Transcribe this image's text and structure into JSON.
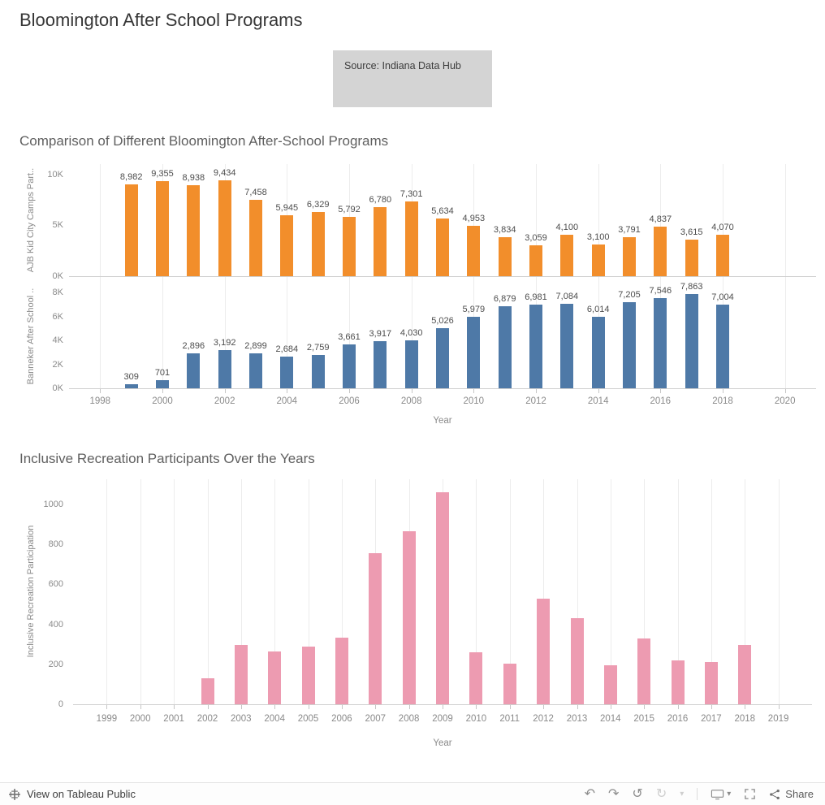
{
  "page": {
    "title": "Bloomington After School Programs",
    "source_note": "Source: Indiana Data Hub"
  },
  "toolbar": {
    "view_label": "View on Tableau Public",
    "share_label": "Share",
    "icons": [
      "tableau-logo-icon",
      "undo-icon",
      "redo-icon",
      "replay-icon",
      "refresh-icon",
      "caret-down-icon",
      "device-layout-icon",
      "fullscreen-icon",
      "share-icon"
    ]
  },
  "chart_data": [
    {
      "type": "bar",
      "title": "Comparison of Different Bloomington After-School Programs",
      "xlabel": "Year",
      "x_range": [
        1997,
        2021
      ],
      "x_ticks": [
        1998,
        2000,
        2002,
        2004,
        2006,
        2008,
        2010,
        2012,
        2014,
        2016,
        2018,
        2020
      ],
      "categories": [
        1999,
        2000,
        2001,
        2002,
        2003,
        2004,
        2005,
        2006,
        2007,
        2008,
        2009,
        2010,
        2011,
        2012,
        2013,
        2014,
        2015,
        2016,
        2017,
        2018
      ],
      "grid": "vertical",
      "legend": "none",
      "panels": [
        {
          "name": "AJB Kid City Camps Participation",
          "axis_label": "AJB Kid City Camps Part..",
          "color": "#f28e2b",
          "ylim": [
            0,
            11000
          ],
          "y_ticks": [
            {
              "v": 0,
              "label": "0K"
            },
            {
              "v": 5000,
              "label": "5K"
            },
            {
              "v": 10000,
              "label": "10K"
            }
          ],
          "values": [
            8982,
            9355,
            8938,
            9434,
            7458,
            5945,
            6329,
            5792,
            6780,
            7301,
            5634,
            4953,
            3834,
            3059,
            4100,
            3100,
            3791,
            4837,
            3615,
            4070
          ]
        },
        {
          "name": "Banneker After School Participation",
          "axis_label": "Banneker After School ..",
          "color": "#4e79a7",
          "ylim": [
            0,
            8700
          ],
          "y_ticks": [
            {
              "v": 0,
              "label": "0K"
            },
            {
              "v": 2000,
              "label": "2K"
            },
            {
              "v": 4000,
              "label": "4K"
            },
            {
              "v": 6000,
              "label": "6K"
            },
            {
              "v": 8000,
              "label": "8K"
            }
          ],
          "values": [
            309,
            701,
            2896,
            3192,
            2899,
            2684,
            2759,
            3661,
            3917,
            4030,
            5026,
            5979,
            6879,
            6981,
            7084,
            6014,
            7205,
            7546,
            7863,
            7004
          ]
        }
      ]
    },
    {
      "type": "bar",
      "title": "Inclusive Recreation Participants Over the Years",
      "xlabel": "Year",
      "ylabel": "Inclusive Recreation Participation",
      "color": "#ed9bb1",
      "x_range": [
        1998,
        2020
      ],
      "x_ticks": [
        1999,
        2000,
        2001,
        2002,
        2003,
        2004,
        2005,
        2006,
        2007,
        2008,
        2009,
        2010,
        2011,
        2012,
        2013,
        2014,
        2015,
        2016,
        2017,
        2018,
        2019
      ],
      "categories": [
        2002,
        2003,
        2004,
        2005,
        2006,
        2007,
        2008,
        2009,
        2010,
        2011,
        2012,
        2013,
        2014,
        2015,
        2016,
        2017,
        2018
      ],
      "values": [
        130,
        295,
        265,
        290,
        335,
        755,
        865,
        1060,
        260,
        205,
        530,
        430,
        195,
        330,
        220,
        210,
        295
      ],
      "ylim": [
        0,
        1125
      ],
      "y_ticks": [
        0,
        200,
        400,
        600,
        800,
        1000
      ],
      "grid": "vertical",
      "legend": "none"
    }
  ]
}
